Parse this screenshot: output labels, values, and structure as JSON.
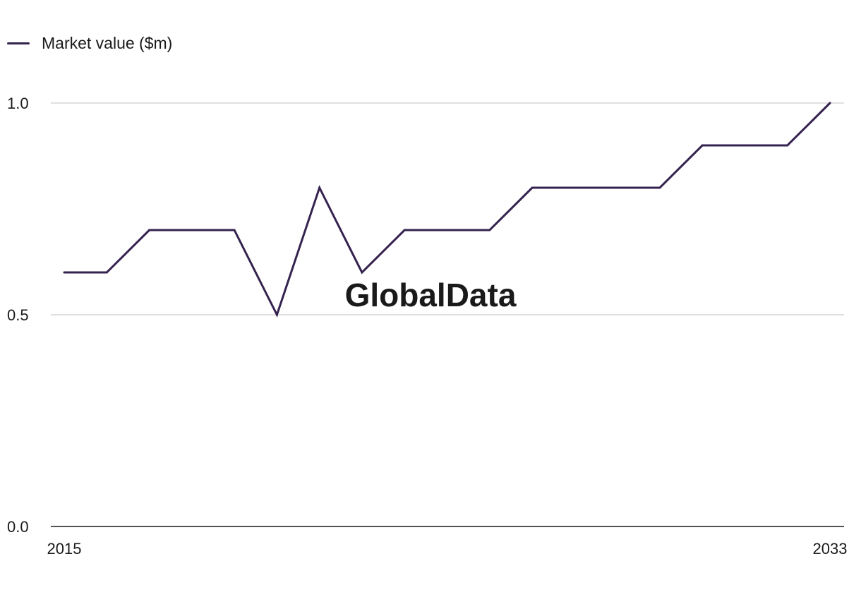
{
  "brand": {
    "watermark": "GlobalData"
  },
  "colors": {
    "series": "#35234f",
    "grid": "#d6d6d6",
    "axis": "#1a1a1a",
    "watermark": "#f3f3f3"
  },
  "chart_data": {
    "type": "line",
    "title": "",
    "xlabel": "",
    "ylabel": "",
    "x": [
      2015,
      2016,
      2017,
      2018,
      2019,
      2020,
      2021,
      2022,
      2023,
      2024,
      2025,
      2026,
      2027,
      2028,
      2029,
      2030,
      2031,
      2032,
      2033
    ],
    "series": [
      {
        "name": "Market value ($m)",
        "values": [
          0.6,
          0.6,
          0.7,
          0.7,
          0.7,
          0.5,
          0.8,
          0.6,
          0.7,
          0.7,
          0.7,
          0.8,
          0.8,
          0.8,
          0.8,
          0.9,
          0.9,
          0.9,
          1.0
        ]
      }
    ],
    "ylim": [
      0.0,
      1.0
    ],
    "y_ticks": [
      "0.0",
      "0.5",
      "1.0"
    ],
    "x_tick_labels": [
      "2015",
      "2033"
    ],
    "grid": true,
    "legend_position": "top-left"
  }
}
